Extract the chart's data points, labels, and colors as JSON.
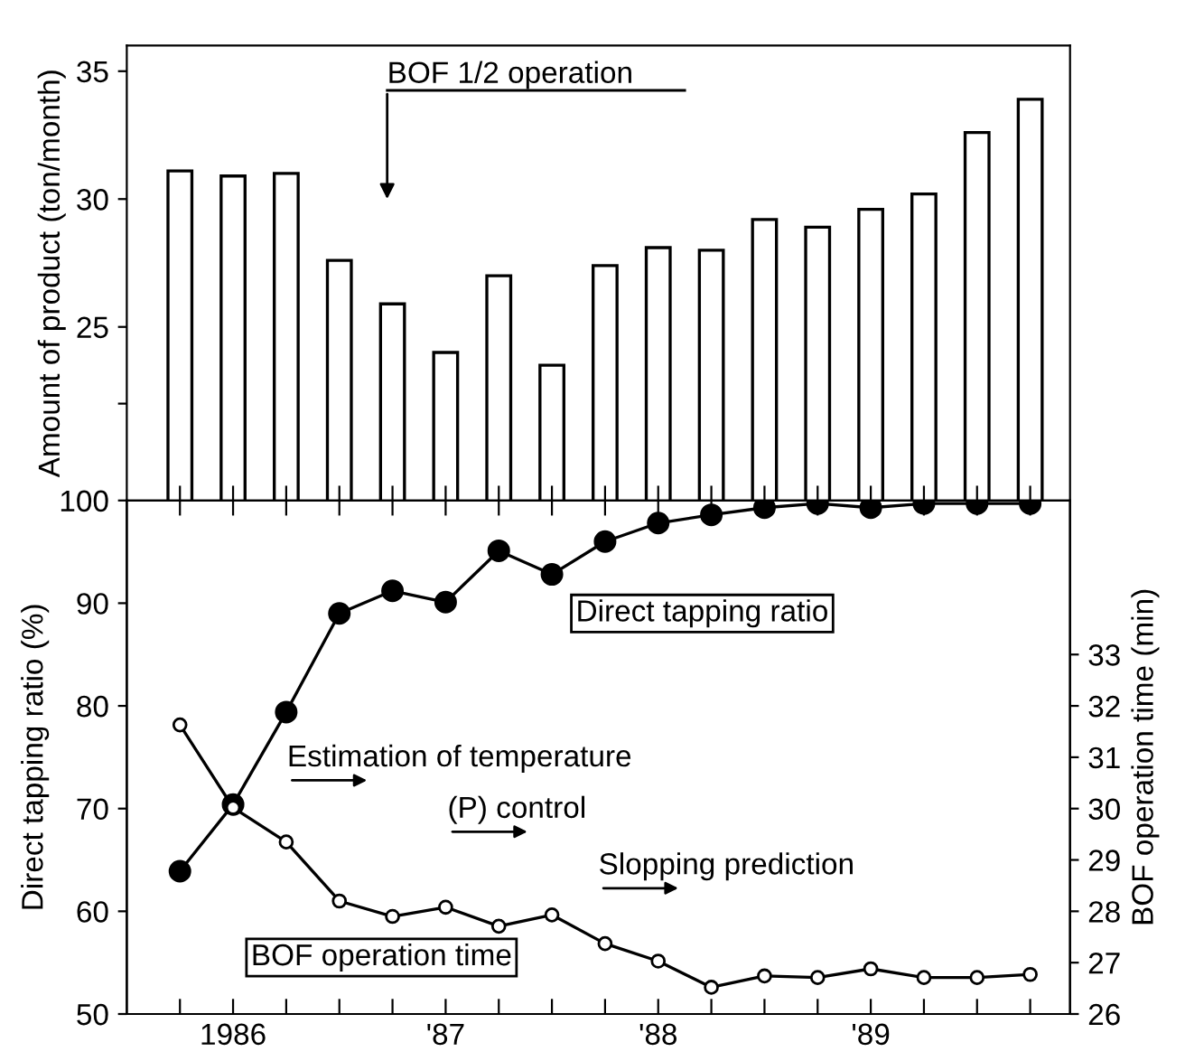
{
  "chart_data": [
    {
      "type": "bar",
      "ylabel": "Amount of product (ton/month)",
      "categories": [
        null,
        null,
        null,
        null,
        null,
        null,
        null,
        null,
        null,
        null,
        null,
        null,
        null,
        null,
        null,
        null,
        null
      ],
      "values": [
        31.1,
        30.9,
        31.0,
        27.6,
        25.9,
        24.0,
        27.0,
        23.5,
        27.4,
        28.1,
        28.0,
        29.2,
        28.9,
        29.6,
        30.2,
        32.6,
        33.9
      ],
      "color": "#ffffff",
      "ylim": [
        18.2,
        36
      ],
      "yticks": [
        {
          "value": 22,
          "label": null
        },
        25,
        30,
        35
      ],
      "grid": false,
      "annotations": [
        "BOF 1/2 operation"
      ]
    },
    {
      "type": "line",
      "ylabel": "Direct tapping ratio (%)",
      "y2label": "BOF operation time (min)",
      "categories": [
        null,
        "1986",
        null,
        null,
        null,
        "'87",
        null,
        null,
        null,
        "'88",
        null,
        null,
        null,
        "'89",
        null,
        null,
        null
      ],
      "series": [
        {
          "name": "Direct tapping ratio",
          "color": "#000000",
          "marker": "circle",
          "values": [
            63.9,
            70.4,
            79.4,
            89.0,
            91.2,
            90.1,
            95.1,
            92.8,
            96.0,
            97.8,
            98.6,
            99.3,
            99.7,
            99.3,
            99.7,
            99.7,
            99.7
          ]
        },
        {
          "name": "BOF operation time",
          "color": "#000000",
          "marker": "circle",
          "axis": "y2",
          "values": [
            31.63,
            30.02,
            29.35,
            28.2,
            27.9,
            28.08,
            27.71,
            27.93,
            27.37,
            27.03,
            26.52,
            26.74,
            26.71,
            26.88,
            26.71,
            26.71,
            26.77
          ]
        }
      ],
      "ylim": [
        50,
        100
      ],
      "yticks": [
        50,
        60,
        70,
        80,
        90,
        100
      ],
      "y2lim": [
        26,
        36
      ],
      "y2ticks": [
        26,
        27,
        28,
        29,
        30,
        31,
        32,
        33
      ],
      "grid": false,
      "line_style": "solid",
      "annotations": [
        "Estimation of temperature",
        "(P) control",
        "Slopping prediction"
      ]
    }
  ]
}
